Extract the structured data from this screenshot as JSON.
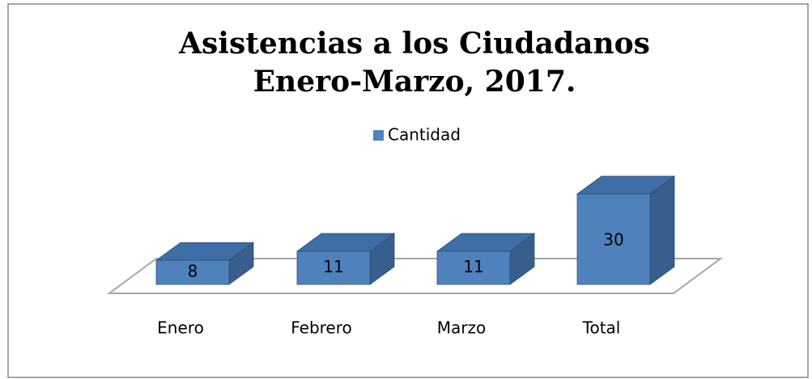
{
  "chart_data": {
    "type": "bar3d",
    "title": [
      "Asistencias a los Ciudadanos",
      "Enero-Marzo, 2017."
    ],
    "categories": [
      "Enero",
      "Febrero",
      "Marzo",
      "Total"
    ],
    "series": [
      {
        "name": "Cantidad",
        "color": "#4f81bd",
        "values": [
          8,
          11,
          11,
          30
        ]
      }
    ],
    "legend": "top"
  }
}
